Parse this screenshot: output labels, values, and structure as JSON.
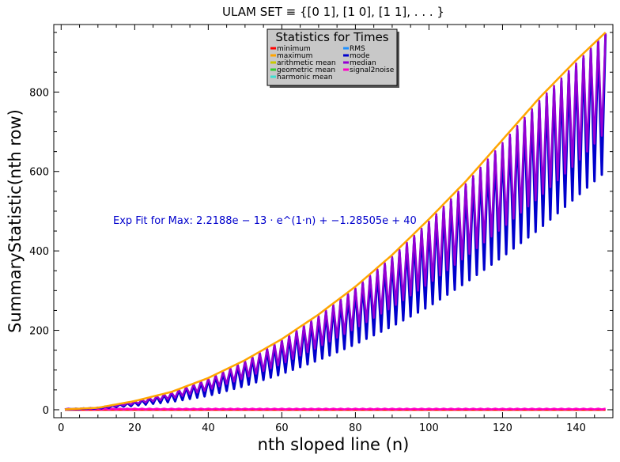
{
  "chart_data": {
    "type": "line",
    "title": "ULAM SET ≡ {[0 1], [1 0], [1 1], . . . }",
    "xlabel": "nth sloped line (n)",
    "ylabel": "SummaryStatistic(nth row)",
    "xlim": [
      -2,
      150
    ],
    "ylim": [
      -20,
      970
    ],
    "xticks": [
      0,
      20,
      40,
      60,
      80,
      100,
      120,
      140
    ],
    "yticks": [
      0,
      200,
      400,
      600,
      800
    ],
    "grid": false,
    "legend": {
      "title": "Statistics for Times",
      "placement": "top-center",
      "entries": [
        {
          "name": "minimum",
          "color": "#ff0000"
        },
        {
          "name": "maximum",
          "color": "#ffa500"
        },
        {
          "name": "arithmetic mean",
          "color": "#c8c800"
        },
        {
          "name": "geometric mean",
          "color": "#32cd32"
        },
        {
          "name": "harmonic mean",
          "color": "#40e0d0"
        },
        {
          "name": "RMS",
          "color": "#1e90ff"
        },
        {
          "name": "mode",
          "color": "#0000cd"
        },
        {
          "name": "median",
          "color": "#9400d3"
        },
        {
          "name": "signal2noise",
          "color": "#ff00c8"
        }
      ]
    },
    "annotation": {
      "prefix": "Exp Fit for Max:",
      "formula": "2.2188e − 13 · e^(1·n) + −1.28505e + 40",
      "color": "#0000cc"
    },
    "x_range": [
      1,
      148
    ],
    "series": [
      {
        "name": "maximum",
        "color": "#ffa500",
        "shape": "smooth",
        "x": [
          1,
          10,
          20,
          30,
          40,
          50,
          60,
          70,
          80,
          90,
          100,
          110,
          120,
          130,
          140,
          148
        ],
        "values": [
          1,
          5,
          22,
          45,
          80,
          125,
          178,
          240,
          310,
          390,
          480,
          575,
          680,
          785,
          880,
          950
        ]
      },
      {
        "name": "mode",
        "color": "#0000cd",
        "shape": "oscillating",
        "x": [
          1,
          10,
          20,
          30,
          40,
          50,
          60,
          70,
          80,
          90,
          100,
          110,
          120,
          130,
          140,
          148
        ],
        "upper": [
          1,
          5,
          20,
          42,
          76,
          120,
          172,
          232,
          302,
          380,
          468,
          562,
          664,
          770,
          865,
          945
        ],
        "lower": [
          1,
          3,
          10,
          20,
          35,
          60,
          90,
          125,
          165,
          210,
          260,
          320,
          385,
          455,
          535,
          600
        ]
      },
      {
        "name": "median",
        "color": "#9400d3",
        "shape": "oscillating",
        "x": [
          1,
          10,
          20,
          30,
          40,
          50,
          60,
          70,
          80,
          90,
          100,
          110,
          120,
          130,
          140,
          148
        ],
        "upper": [
          1,
          5,
          21,
          44,
          78,
          122,
          175,
          236,
          306,
          385,
          474,
          568,
          672,
          778,
          872,
          948
        ],
        "lower": [
          1,
          4,
          14,
          28,
          50,
          80,
          115,
          158,
          205,
          258,
          318,
          385,
          458,
          535,
          620,
          700
        ]
      },
      {
        "name": "signal2noise",
        "color": "#ff00c8",
        "shape": "near-zero",
        "x": [
          1,
          148
        ],
        "values": [
          1,
          1
        ]
      },
      {
        "name": "minimum",
        "color": "#ff0000",
        "shape": "flat",
        "x": [
          1,
          148
        ],
        "values": [
          0,
          0
        ]
      }
    ]
  }
}
